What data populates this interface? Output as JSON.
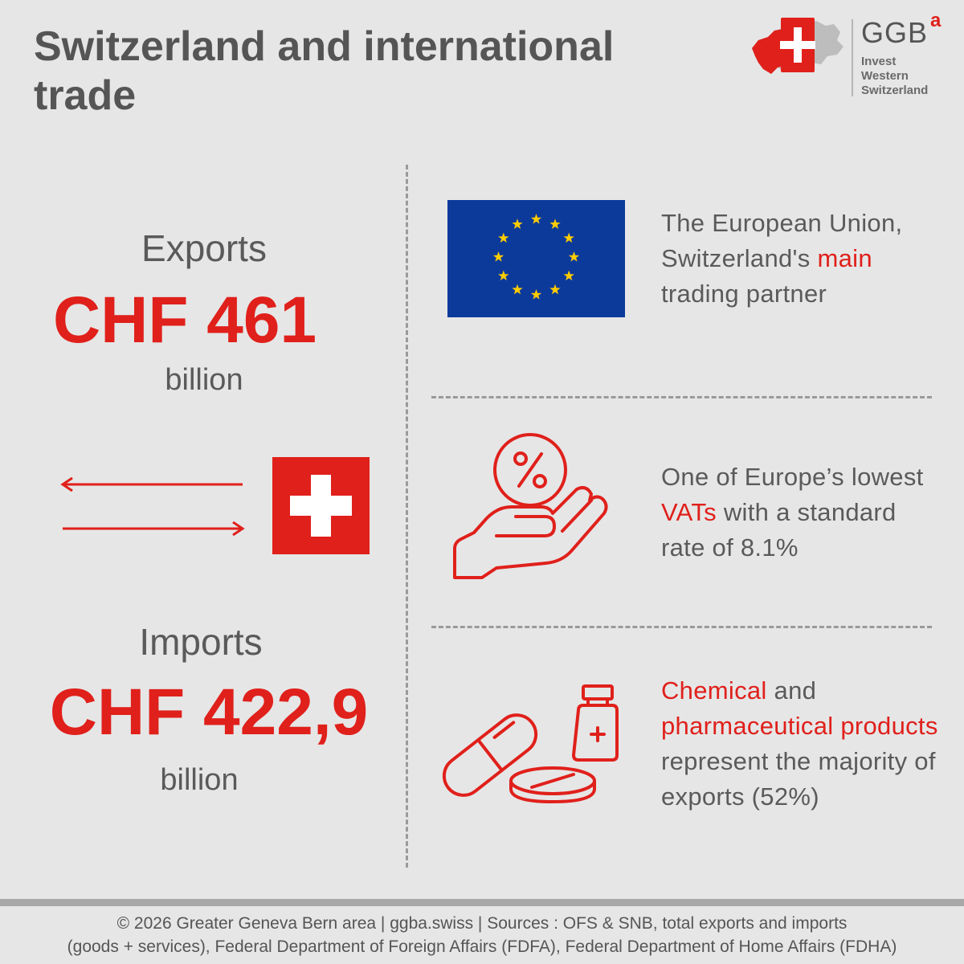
{
  "title": "Switzerland and international trade",
  "logo": {
    "brand": "GGB",
    "superscript": "a",
    "lines": [
      "Invest",
      "Western",
      "Switzerland"
    ]
  },
  "exports": {
    "label": "Exports",
    "value": "CHF 461",
    "unit": "billion"
  },
  "imports": {
    "label": "Imports",
    "value": "CHF 422,9",
    "unit": "billion"
  },
  "facts": {
    "eu": {
      "line1": "The European Union,",
      "line2_pre": "Switzerland's ",
      "line2_red": "main",
      "line3": "trading partner"
    },
    "vat": {
      "line1": "One of Europe’s lowest",
      "line2_red": "VATs",
      "line2_post": " with a standard",
      "line3": "rate of 8.1%"
    },
    "chem": {
      "line1_red": "Chemical",
      "line1_post": " and",
      "line2_red": "pharmaceutical products",
      "line3": "represent the majority of",
      "line4": "exports (52%)"
    }
  },
  "icons": {
    "eu_flag": "eu-flag-icon",
    "swiss_flag": "swiss-flag-icon",
    "arrows": "trade-arrows-icon",
    "vat": "percent-hand-icon",
    "pharma": "pills-bottle-icon",
    "logo_map": "switzerland-map-icon"
  },
  "colors": {
    "accent": "#e0201b",
    "text": "#555555",
    "background": "#e6e6e6",
    "eu_blue": "#0c3a9b",
    "eu_star": "#ffcc00"
  },
  "footer": {
    "line1": "© 2026 Greater Geneva Bern area | ggba.swiss | Sources : OFS & SNB, total exports and imports",
    "line2": "(goods + services), Federal Department of Foreign Affairs (FDFA), Federal Department of Home Affairs (FDHA)"
  }
}
